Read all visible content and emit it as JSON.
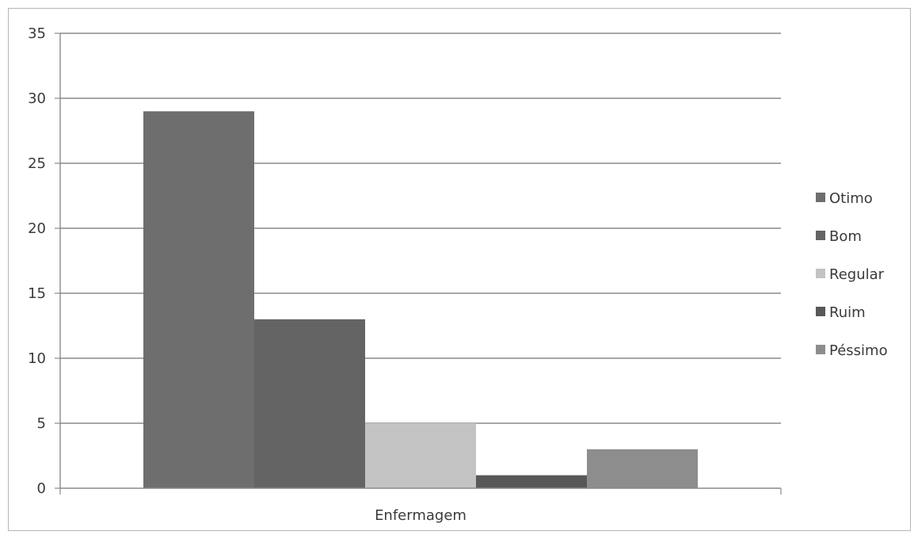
{
  "chart_data": {
    "type": "bar",
    "categories": [
      "Enfermagem"
    ],
    "series": [
      {
        "name": "Otimo",
        "values": [
          29
        ],
        "color": "#6e6e6e"
      },
      {
        "name": "Bom",
        "values": [
          13
        ],
        "color": "#646464"
      },
      {
        "name": "Regular",
        "values": [
          5
        ],
        "color": "#c3c3c3"
      },
      {
        "name": "Ruim",
        "values": [
          1
        ],
        "color": "#585858"
      },
      {
        "name": "Péssimo",
        "values": [
          3
        ],
        "color": "#8d8d8d"
      }
    ],
    "title": "",
    "xlabel": "",
    "ylabel": "",
    "ylim": [
      0,
      35
    ],
    "yticks": [
      "0",
      "5",
      "10",
      "15",
      "20",
      "25",
      "30",
      "35"
    ],
    "grid": true,
    "legend_position": "right"
  }
}
